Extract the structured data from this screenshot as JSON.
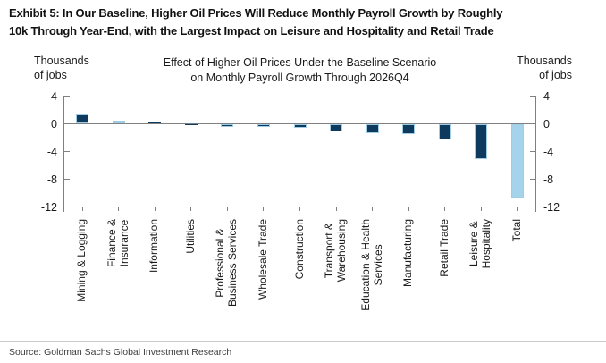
{
  "exhibit_title": "Exhibit 5: In Our Baseline, Higher Oil Prices Will Reduce Monthly Payroll Growth by Roughly\n10k Through Year-End, with the Largest Impact on Leisure and Hospitality and Retail Trade",
  "source": "Source: Goldman Sachs Global Investment Research",
  "chart_data": {
    "type": "bar",
    "title": "Effect of Higher Oil Prices Under the Baseline Scenario\non Monthly Payroll Growth Through 2026Q4",
    "unit_label_left": "Thousands\nof jobs",
    "unit_label_right": "Thousands\nof jobs",
    "categories": [
      "Mining & Logging",
      "Finance &\nInsurance",
      "Information",
      "Utilities",
      "Professional &\nBusiness Services",
      "Wholesale Trade",
      "Construction",
      "Transport &\nWarehousing",
      "Education & Health\nServices",
      "Manufacturing",
      "Retail Trade",
      "Leisure &\nHospitality",
      "Total"
    ],
    "values": [
      1.3,
      0.4,
      0.3,
      -0.1,
      -0.4,
      -0.4,
      -0.6,
      -1.1,
      -1.3,
      -1.5,
      -2.3,
      -5.1,
      -10.6
    ],
    "y_ticks": [
      4,
      0,
      -4,
      -8,
      -12
    ],
    "ylim": [
      -12,
      4
    ],
    "grid": false,
    "legend": "none",
    "total_category": "Total",
    "colors": {
      "bar": "#0e3a5d",
      "bar_edge": "#9fcde6",
      "total_bar": "#a6d3ec",
      "zero_line": "#808080",
      "axis": "#808080"
    }
  }
}
